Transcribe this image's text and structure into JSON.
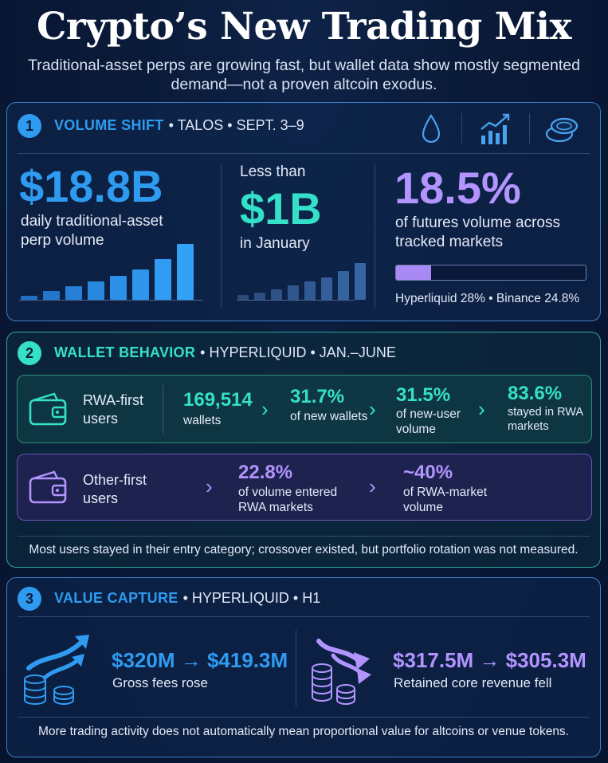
{
  "title": "Crypto’s New Trading Mix",
  "subtitle": "Traditional-asset perps are growing fast, but wallet data show mostly segmented demand—not a proven altcoin exodus.",
  "colors": {
    "blue": "#2f9bf0",
    "teal": "#35e0c8",
    "purple": "#b394ff"
  },
  "section1": {
    "number": "1",
    "keyword": "VOLUME SHIFT",
    "rest": "• TALOS • SEPT. 3–9",
    "icons": [
      "droplet-icon",
      "bar-chart-trend-icon",
      "coins-icon"
    ],
    "stat1": {
      "value": "$18.8B",
      "label_line1": "daily traditional-asset",
      "label_line2": "perp volume"
    },
    "stat2": {
      "prefix": "Less than",
      "value": "$1B",
      "label": "in January"
    },
    "stat3": {
      "value": "18.5%",
      "label_line1": "of futures volume across",
      "label_line2": "tracked markets",
      "share": 0.185,
      "note": "Hyperliquid 28% • Binance 24.8%"
    }
  },
  "section2": {
    "number": "2",
    "keyword": "WALLET BEHAVIOR",
    "rest": "• HYPERLIQUID • JAN.–JUNE",
    "row1": {
      "label_line1": "RWA-first",
      "label_line2": "users",
      "s1_value": "169,514",
      "s1_label": "wallets",
      "s2_value": "31.7%",
      "s2_label": "of new wallets",
      "s3_value": "31.5%",
      "s3_label_line1": "of new-user",
      "s3_label_line2": "volume",
      "s4_value": "83.6%",
      "s4_label_line1": "stayed in RWA",
      "s4_label_line2": "markets"
    },
    "row2": {
      "label_line1": "Other-first",
      "label_line2": "users",
      "s1_value": "22.8%",
      "s1_label_line1": "of volume entered",
      "s1_label_line2": "RWA markets",
      "s2_value": "~40%",
      "s2_label_line1": "of RWA-market",
      "s2_label_line2": "volume"
    },
    "note": "Most users stayed in their entry category; crossover existed, but portfolio rotation was not measured."
  },
  "section3": {
    "number": "3",
    "keyword": "VALUE CAPTURE",
    "rest": "• HYPERLIQUID • H1",
    "left": {
      "value": "$320M → $419.3M",
      "label": "Gross fees rose"
    },
    "right": {
      "value": "$317.5M → $305.3M",
      "label": "Retained core revenue fell"
    },
    "note": "More trading activity does not automatically mean proportional value for altcoins or venue tokens."
  }
}
